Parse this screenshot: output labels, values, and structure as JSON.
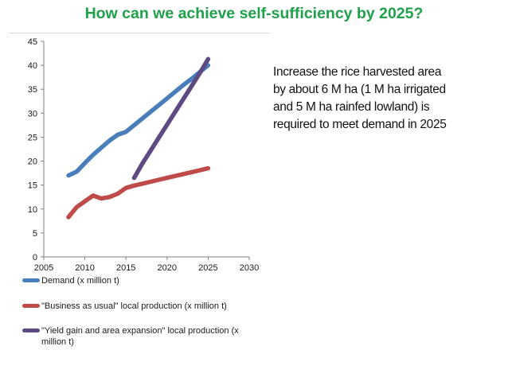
{
  "header": {
    "title": "How can we achieve self-sufficiency by 2025?"
  },
  "note": {
    "lines": [
      "Increase the rice harvested area",
      "by about 6 M ha (1 M ha irrigated",
      "and 5 M ha rainfed lowland) is",
      "required to meet demand in 2025"
    ]
  },
  "chart_data": {
    "type": "line",
    "title": "",
    "xlabel": "",
    "ylabel": "",
    "xlim": [
      2005,
      2030
    ],
    "ylim": [
      0,
      45
    ],
    "xticks": [
      "2005",
      "2010",
      "2015",
      "2020",
      "2025",
      "2030"
    ],
    "yticks": [
      "0",
      "5",
      "10",
      "15",
      "20",
      "25",
      "30",
      "35",
      "40",
      "45"
    ],
    "grid": false,
    "legend_position": "bottom",
    "series": [
      {
        "name": "Demand (x million t)",
        "color": "#4a7ebb",
        "points": [
          [
            2008,
            17
          ],
          [
            2009,
            17.8
          ],
          [
            2010,
            19.6
          ],
          [
            2011,
            21.3
          ],
          [
            2012,
            22.8
          ],
          [
            2013,
            24.3
          ],
          [
            2014,
            25.5
          ],
          [
            2015,
            26.1
          ],
          [
            2016,
            27.5
          ],
          [
            2017,
            28.9
          ],
          [
            2018,
            30.3
          ],
          [
            2019,
            31.7
          ],
          [
            2020,
            33.1
          ],
          [
            2021,
            34.5
          ],
          [
            2022,
            35.9
          ],
          [
            2023,
            37.2
          ],
          [
            2024,
            38.6
          ],
          [
            2025,
            40
          ]
        ]
      },
      {
        "name": "\"Business as usual\" local production (x million t)",
        "color": "#be4b48",
        "points": [
          [
            2008,
            8.3
          ],
          [
            2009,
            10.4
          ],
          [
            2010,
            11.6
          ],
          [
            2011,
            12.8
          ],
          [
            2012,
            12.2
          ],
          [
            2013,
            12.5
          ],
          [
            2014,
            13.2
          ],
          [
            2015,
            14.4
          ],
          [
            2016,
            14.9
          ],
          [
            2017,
            15.3
          ],
          [
            2018,
            15.7
          ],
          [
            2019,
            16.1
          ],
          [
            2020,
            16.5
          ],
          [
            2021,
            16.9
          ],
          [
            2022,
            17.3
          ],
          [
            2023,
            17.7
          ],
          [
            2024,
            18.1
          ],
          [
            2025,
            18.5
          ]
        ]
      },
      {
        "name": "\"Yield gain and area expansion\" local production (x million t)",
        "color": "#5e4a82",
        "points": [
          [
            2016,
            16.5
          ],
          [
            2017,
            19.5
          ],
          [
            2018,
            22.2
          ],
          [
            2019,
            24.9
          ],
          [
            2020,
            27.6
          ],
          [
            2021,
            30.3
          ],
          [
            2022,
            33
          ],
          [
            2023,
            35.7
          ],
          [
            2024,
            38.4
          ],
          [
            2025,
            41.3
          ]
        ]
      }
    ]
  }
}
